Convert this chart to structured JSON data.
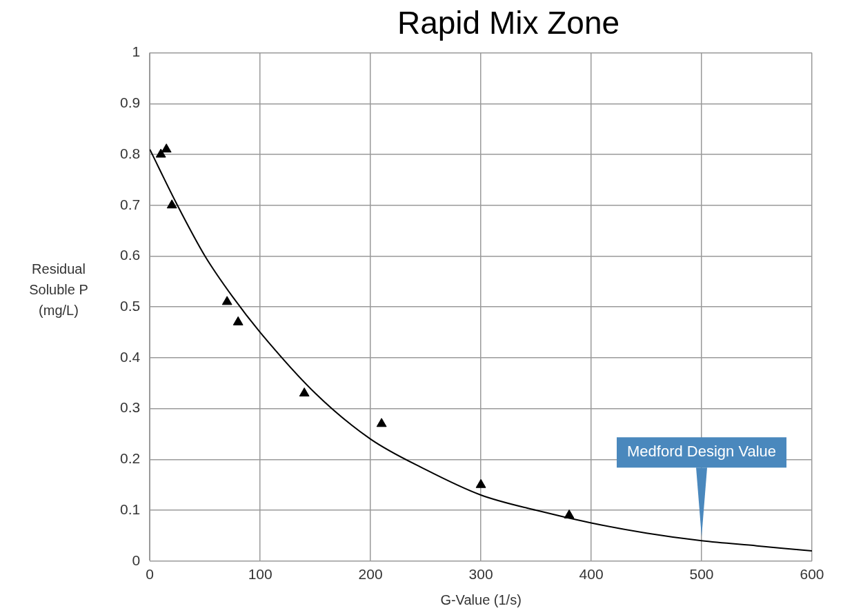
{
  "chart_data": {
    "type": "scatter",
    "title": "Rapid Mix Zone",
    "xlabel": "G-Value (1/s)",
    "ylabel": "Residual Soluble P (mg/L)",
    "series": [
      {
        "marker": "triangle",
        "color": "#000000",
        "x": [
          10,
          15,
          20,
          70,
          80,
          140,
          210,
          300,
          380
        ],
        "values": [
          0.8,
          0.81,
          0.7,
          0.51,
          0.47,
          0.33,
          0.27,
          0.15,
          0.09
        ]
      },
      {
        "type": "line",
        "marker": "none",
        "color": "#000000",
        "x": [
          0,
          25,
          50,
          75,
          100,
          150,
          200,
          250,
          300,
          350,
          400,
          450,
          500,
          550,
          600
        ],
        "values": [
          0.81,
          0.7,
          0.6,
          0.52,
          0.45,
          0.33,
          0.24,
          0.18,
          0.13,
          0.1,
          0.075,
          0.055,
          0.04,
          0.03,
          0.02
        ]
      }
    ],
    "xlim": [
      0,
      600
    ],
    "xticks": [
      0,
      100,
      200,
      300,
      400,
      500,
      600
    ],
    "ylim": [
      0,
      1
    ],
    "yticks": [
      0,
      0.1,
      0.2,
      0.3,
      0.4,
      0.5,
      0.6,
      0.7,
      0.8,
      0.9,
      1
    ],
    "grid": true,
    "legend": false,
    "annotations": [
      {
        "text": "Medford Design Value",
        "x": 500,
        "y": 0.04
      }
    ]
  }
}
